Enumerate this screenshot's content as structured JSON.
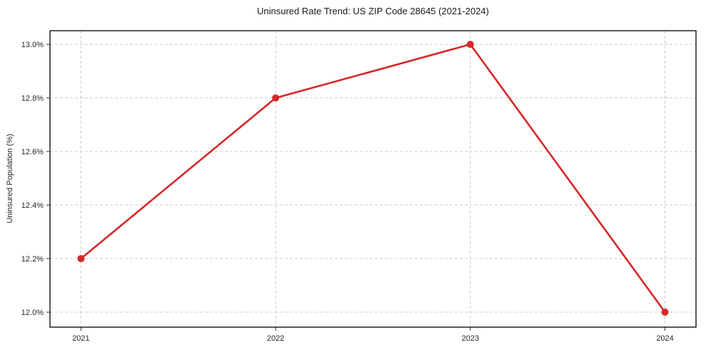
{
  "chart_data": {
    "type": "line",
    "title": "Uninsured Rate Trend: US ZIP Code 28645 (2021-2024)",
    "ylabel": "Uninsured Population (%)",
    "xlabel": "",
    "categories": [
      "2021",
      "2022",
      "2023",
      "2024"
    ],
    "values": [
      12.2,
      12.8,
      13.0,
      12.0
    ],
    "yticks": [
      12.0,
      12.2,
      12.4,
      12.6,
      12.8,
      13.0
    ],
    "ytick_labels": [
      "12.0%",
      "12.2%",
      "12.4%",
      "12.6%",
      "12.8%",
      "13.0%"
    ],
    "ylim": [
      11.944,
      13.051
    ],
    "grid": true,
    "legend_position": "none",
    "line_color": "#d62728",
    "marker": "circle",
    "grid_color": "#cccccc",
    "axis_color": "#000000",
    "tick_color": "#333333",
    "text_color": "#262626",
    "background": "#ffffff"
  }
}
